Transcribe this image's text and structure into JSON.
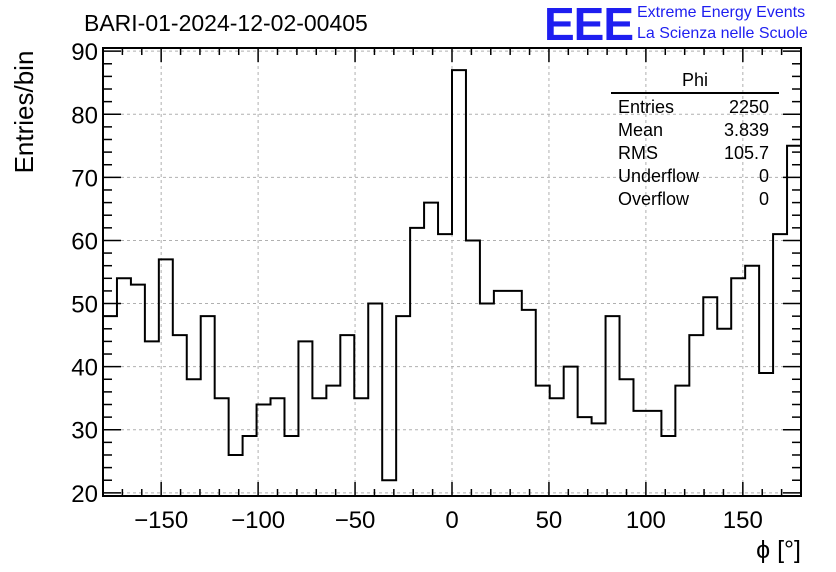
{
  "header": {
    "title": "BARI-01-2024-12-02-00405",
    "logo_text": "EEE",
    "logo_line1": "Extreme Energy Events",
    "logo_line2": "La Scienza nelle Scuole",
    "brand_color": "#1e1ef0"
  },
  "stats_box": {
    "name": "Phi",
    "rows": [
      {
        "label": "Entries",
        "value": "2250"
      },
      {
        "label": "Mean",
        "value": "3.839"
      },
      {
        "label": "RMS",
        "value": "105.7"
      },
      {
        "label": "Underflow",
        "value": "0"
      },
      {
        "label": "Overflow",
        "value": "0"
      }
    ]
  },
  "chart_data": {
    "type": "histogram",
    "title": "BARI-01-2024-12-02-00405",
    "xlabel": "ϕ [°]",
    "ylabel": "Entries/bin",
    "xlim": [
      -180,
      180
    ],
    "ylim": [
      19.5,
      90.5
    ],
    "bin_width": 7.2,
    "bin_edges_start": -180,
    "x_ticks": [
      -150,
      -100,
      -50,
      0,
      50,
      100,
      150
    ],
    "x_tick_labels": [
      "−150",
      "−100",
      "−50",
      "0",
      "50",
      "100",
      "150"
    ],
    "y_ticks": [
      20,
      30,
      40,
      50,
      60,
      70,
      80,
      90
    ],
    "y_tick_labels": [
      "20",
      "30",
      "40",
      "50",
      "60",
      "70",
      "80",
      "90"
    ],
    "grid": true,
    "values": [
      48,
      54,
      53,
      44,
      57,
      45,
      38,
      48,
      35,
      26,
      29,
      34,
      35,
      29,
      44,
      35,
      37,
      45,
      35,
      50,
      22,
      48,
      62,
      66,
      61,
      87,
      60,
      50,
      52,
      52,
      49,
      37,
      35,
      40,
      32,
      31,
      48,
      38,
      33,
      33,
      29,
      37,
      45,
      51,
      46,
      54,
      56,
      39,
      61,
      75
    ]
  }
}
